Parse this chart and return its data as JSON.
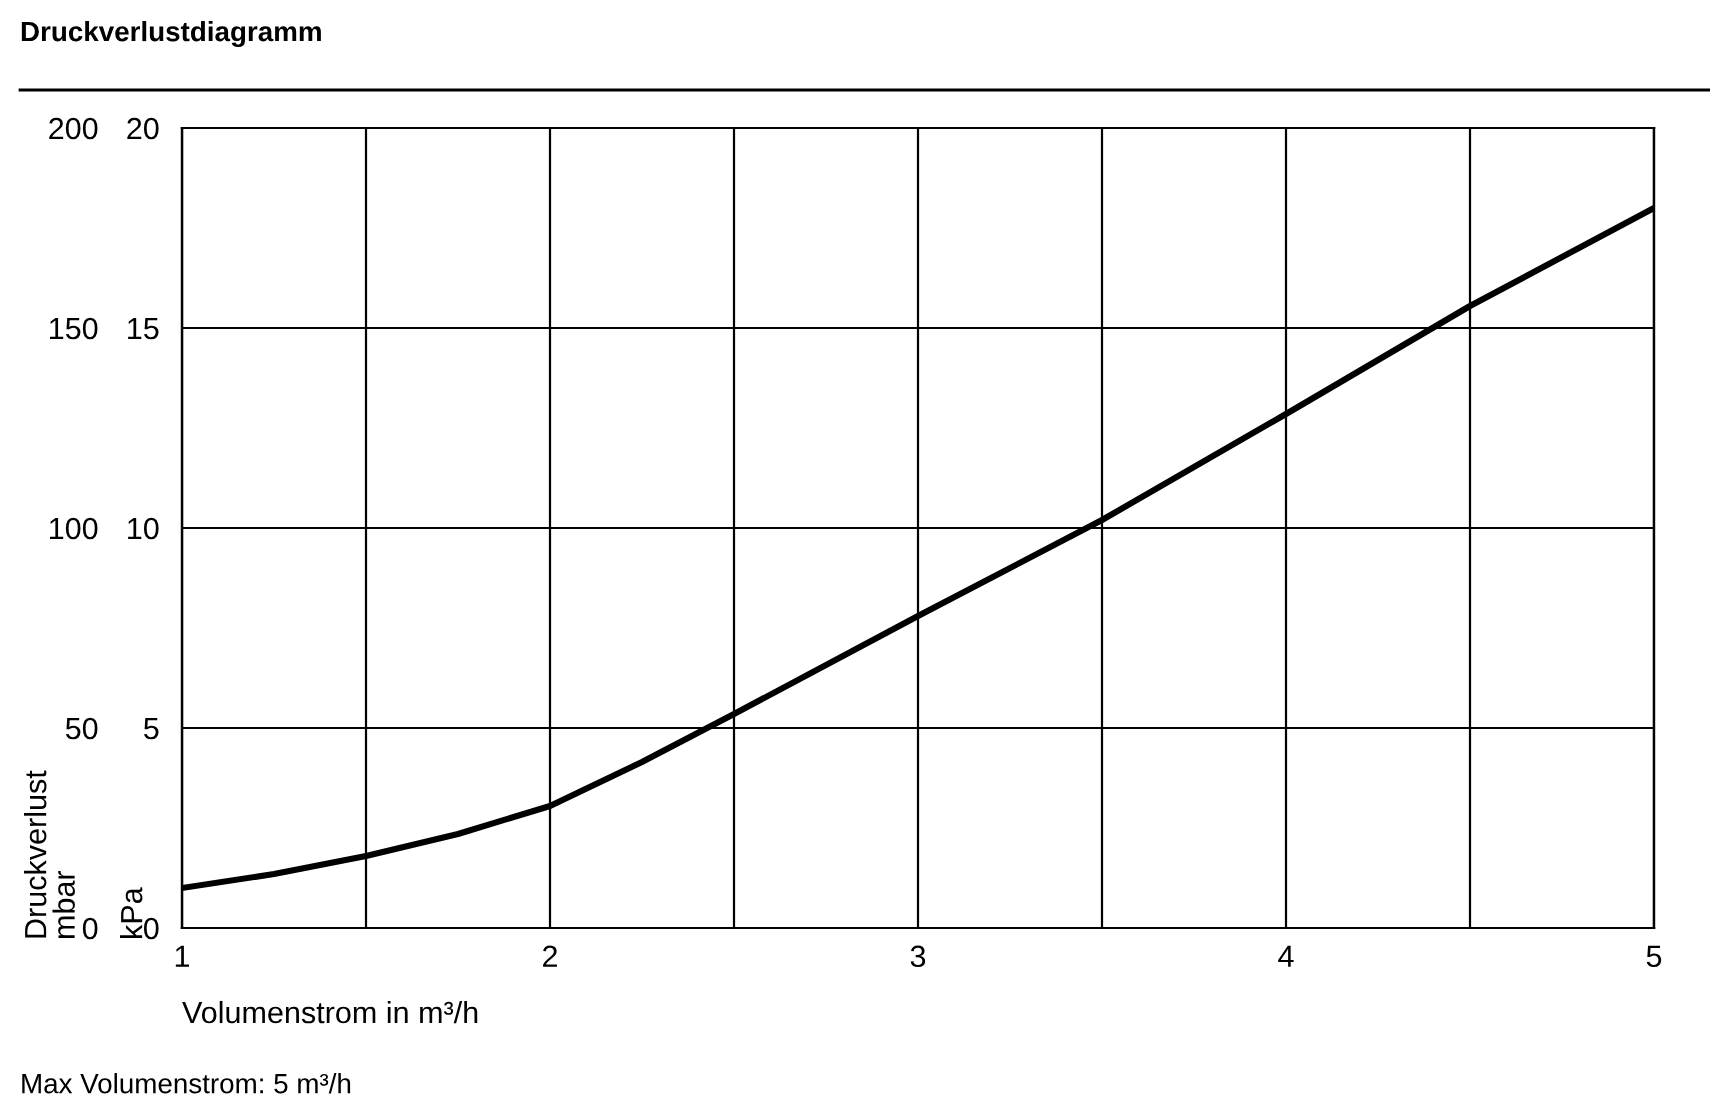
{
  "chart_data": {
    "type": "line",
    "title": "Druckverlustdiagramm",
    "xlabel": "Volumenstrom in m³/h",
    "ylabel": "Druckverlust\nmbar",
    "y2label": "kPa",
    "annotations": [
      "Max Volumenstrom: 5 m³/h"
    ],
    "x": [
      1,
      1.25,
      1.5,
      1.75,
      2,
      2.25,
      2.5,
      3,
      3.5,
      4,
      4.5,
      5
    ],
    "series": [
      {
        "color": "#000000",
        "values": [
          10,
          13.5,
          18,
          23.5,
          30.5,
          41.5,
          53.5,
          78,
          102,
          128.5,
          155.5,
          180
        ]
      }
    ],
    "xlim": [
      1,
      5
    ],
    "xticks": [
      1,
      {
        "value": 1.5,
        "label": null
      },
      2,
      {
        "value": 2.5,
        "label": null
      },
      3,
      {
        "value": 3.5,
        "label": null
      },
      4,
      {
        "value": 4.5,
        "label": null
      },
      5
    ],
    "ylim": [
      0,
      200
    ],
    "yticks": [
      0,
      50,
      100,
      150,
      200
    ],
    "y2lim": [
      0,
      20
    ],
    "y2ticks": [
      0,
      5,
      10,
      15,
      20
    ],
    "grid": true,
    "marker": "none",
    "line_style": "solid"
  }
}
